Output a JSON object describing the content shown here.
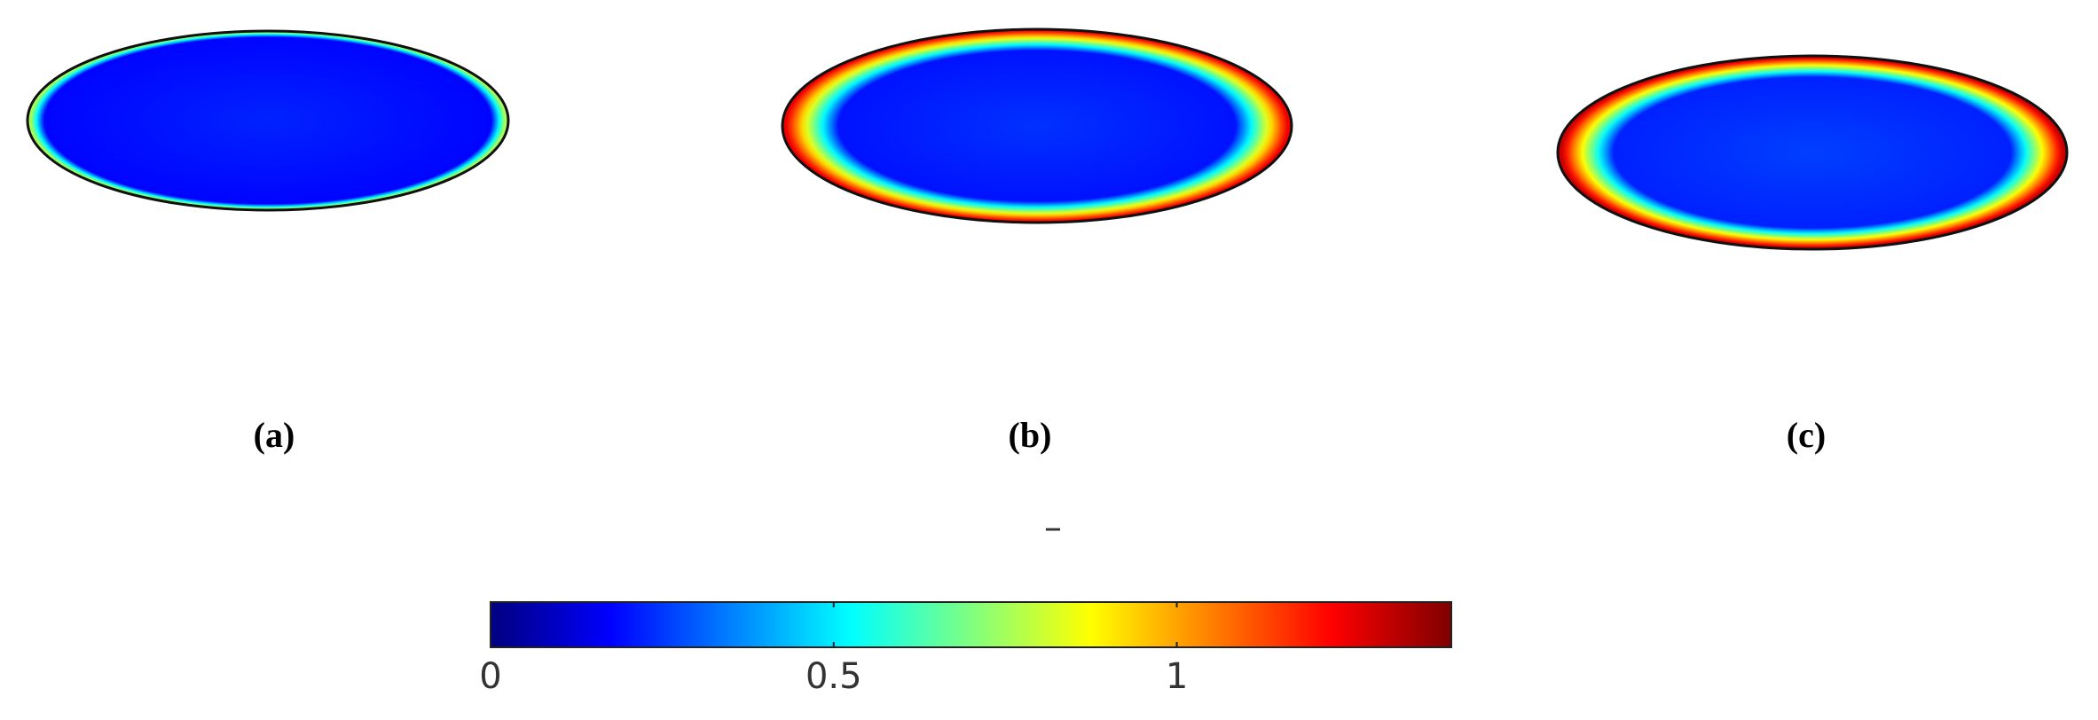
{
  "chart_data": {
    "type": "colormap-panels",
    "colormap": "jet",
    "panels": [
      {
        "label": "(a)",
        "center_value": 0.18,
        "edge_value": 0.75
      },
      {
        "label": "(b)",
        "center_value": 0.2,
        "edge_value": 1.25
      },
      {
        "label": "(c)",
        "center_value": 0.22,
        "edge_value": 1.3
      }
    ],
    "colorbar_label": "–",
    "clim": [
      0,
      1.4
    ],
    "ticks": [
      0,
      0.5,
      1
    ]
  }
}
